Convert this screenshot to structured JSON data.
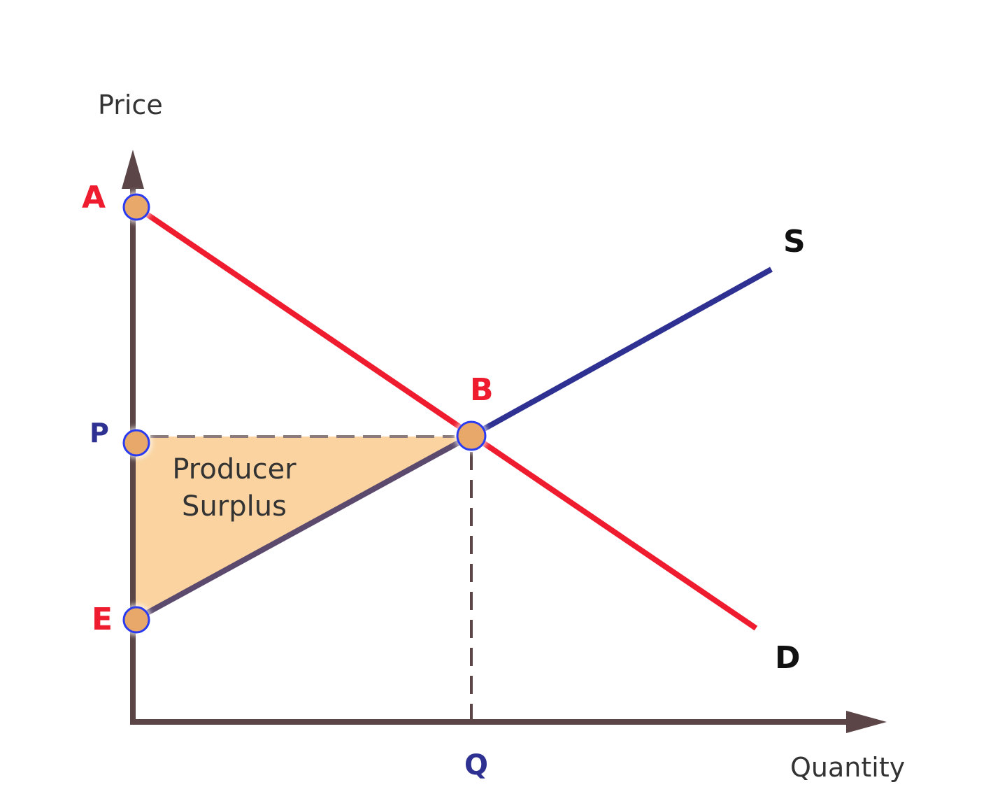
{
  "axes": {
    "y_label": "Price",
    "x_label": "Quantity"
  },
  "curves": {
    "demand": {
      "label": "D",
      "color": "#ee1c2e"
    },
    "supply": {
      "label": "S",
      "color": "#2e3192"
    }
  },
  "points": {
    "a": {
      "label": "A",
      "color": "#ee1c2e"
    },
    "b": {
      "label": "B",
      "color": "#ee1c2e"
    },
    "e": {
      "label": "E",
      "color": "#ee1c2e"
    },
    "p": {
      "label": "P",
      "color": "#2e3192"
    },
    "q": {
      "label": "Q",
      "color": "#2e3192"
    }
  },
  "region": {
    "line1": "Producer",
    "line2": "Surplus",
    "fill": "#fad3a0"
  },
  "colors": {
    "axis": "#5b4547",
    "marker_fill": "#e8a86a",
    "marker_stroke": "#2b3bf0",
    "curve_label": "#111111"
  }
}
